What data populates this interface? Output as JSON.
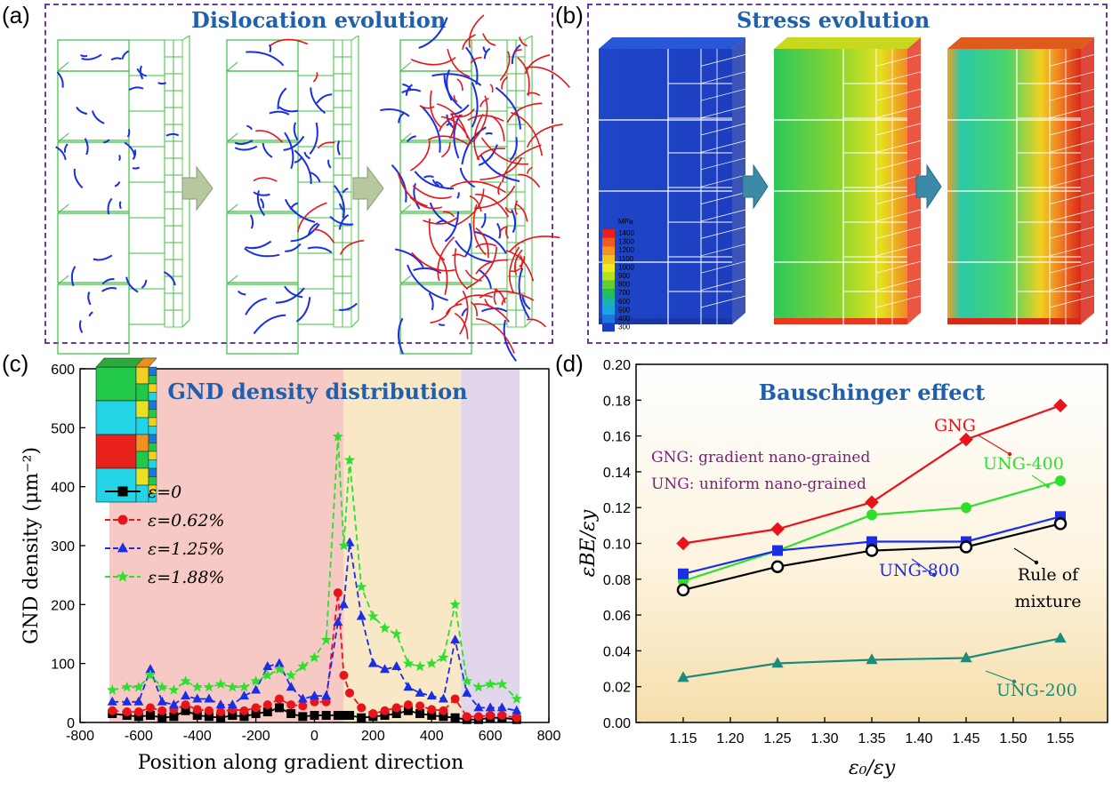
{
  "panels": {
    "a": {
      "label": "(a)",
      "title": "Dislocation evolution"
    },
    "b": {
      "label": "(b)",
      "title": "Stress evolution",
      "colorbar": {
        "unit": "MPa",
        "levels": [
          "1400",
          "1300",
          "1200",
          "1100",
          "1000",
          "900",
          "800",
          "700",
          "600",
          "500",
          "400",
          "300"
        ],
        "colors": [
          "#e4221b",
          "#f05a1e",
          "#f7931e",
          "#f6c21c",
          "#f2ea1d",
          "#b7e11d",
          "#5fd02c",
          "#22c05b",
          "#1cb3a8",
          "#1aa7e0",
          "#1a78d8",
          "#1a3bc8"
        ]
      }
    },
    "c": {
      "label": "(c)"
    },
    "d": {
      "label": "(d)"
    }
  },
  "chart_data": [
    {
      "type": "line",
      "title": "GND density distribution",
      "xlabel": "Position along gradient direction",
      "ylabel": "GND density (μm⁻²)",
      "xlim": [
        -800,
        800
      ],
      "ylim": [
        0,
        600
      ],
      "xticks": [
        "-800",
        "-600",
        "-400",
        "-200",
        "0",
        "200",
        "400",
        "600",
        "800"
      ],
      "yticks": [
        "0",
        "100",
        "200",
        "300",
        "400",
        "500",
        "600"
      ],
      "regions": [
        {
          "from": -700,
          "to": 100,
          "color": "#f7c9c4"
        },
        {
          "from": 100,
          "to": 500,
          "color": "#f9e8c6"
        },
        {
          "from": 500,
          "to": 700,
          "color": "#e2d6ea"
        }
      ],
      "x": [
        -690,
        -640,
        -600,
        -560,
        -520,
        -480,
        -440,
        -400,
        -360,
        -320,
        -280,
        -240,
        -200,
        -160,
        -120,
        -80,
        -40,
        0,
        40,
        80,
        100,
        120,
        160,
        200,
        240,
        280,
        320,
        360,
        400,
        440,
        480,
        520,
        560,
        600,
        640,
        690
      ],
      "series": [
        {
          "name": "ε=0",
          "color": "#000000",
          "marker": "square",
          "values": [
            15,
            12,
            10,
            12,
            8,
            10,
            20,
            12,
            10,
            8,
            12,
            10,
            15,
            18,
            25,
            15,
            10,
            12,
            12,
            12,
            12,
            12,
            8,
            10,
            12,
            15,
            20,
            15,
            12,
            10,
            8,
            5,
            5,
            8,
            8,
            5
          ]
        },
        {
          "name": "ε=0.62%",
          "color": "#e8141a",
          "marker": "circle",
          "values": [
            20,
            18,
            18,
            25,
            20,
            22,
            30,
            22,
            20,
            18,
            22,
            20,
            25,
            30,
            40,
            30,
            28,
            35,
            35,
            220,
            80,
            50,
            25,
            15,
            20,
            25,
            30,
            28,
            22,
            20,
            40,
            10,
            10,
            12,
            12,
            8
          ]
        },
        {
          "name": "ε=1.25%",
          "color": "#1a2ee6",
          "marker": "triangle",
          "values": [
            35,
            35,
            35,
            90,
            35,
            30,
            45,
            40,
            40,
            30,
            30,
            45,
            55,
            95,
            100,
            60,
            40,
            45,
            45,
            170,
            200,
            305,
            180,
            100,
            90,
            95,
            60,
            50,
            45,
            40,
            140,
            50,
            25,
            25,
            25,
            20
          ]
        },
        {
          "name": "ε=1.88%",
          "color": "#2ee02e",
          "marker": "star",
          "values": [
            55,
            60,
            60,
            80,
            60,
            55,
            70,
            60,
            60,
            65,
            60,
            60,
            70,
            80,
            90,
            80,
            95,
            110,
            140,
            485,
            300,
            445,
            230,
            180,
            160,
            150,
            100,
            95,
            100,
            110,
            200,
            70,
            60,
            65,
            65,
            40
          ]
        }
      ]
    },
    {
      "type": "line",
      "title": "Bauschinger effect",
      "xlabel": "ε₀/εy",
      "ylabel": "εBE/εy",
      "xlim": [
        1.1,
        1.6
      ],
      "ylim": [
        0.0,
        0.2
      ],
      "xticks": [
        "1.15",
        "1.20",
        "1.25",
        "1.30",
        "1.35",
        "1.40",
        "1.45",
        "1.50",
        "1.55"
      ],
      "yticks": [
        "0.00",
        "0.02",
        "0.04",
        "0.06",
        "0.08",
        "0.10",
        "0.12",
        "0.14",
        "0.16",
        "0.18",
        "0.20"
      ],
      "x": [
        1.15,
        1.25,
        1.35,
        1.45,
        1.55
      ],
      "series": [
        {
          "name": "GNG",
          "color": "#e8141a",
          "marker": "diamond",
          "values": [
            0.1,
            0.108,
            0.123,
            0.158,
            0.177
          ]
        },
        {
          "name": "UNG-400",
          "color": "#2ee02e",
          "marker": "circle",
          "values": [
            0.079,
            0.096,
            0.116,
            0.12,
            0.135
          ]
        },
        {
          "name": "UNG-800",
          "color": "#1a2ee6",
          "marker": "square",
          "values": [
            0.083,
            0.096,
            0.101,
            0.101,
            0.115
          ]
        },
        {
          "name": "Rule of mixture",
          "color": "#000000",
          "marker": "open-circle",
          "values": [
            0.074,
            0.087,
            0.096,
            0.098,
            0.111
          ]
        },
        {
          "name": "UNG-200",
          "color": "#1e8a7a",
          "marker": "triangle",
          "values": [
            0.025,
            0.033,
            0.035,
            0.036,
            0.047
          ]
        }
      ],
      "annotations": [
        {
          "text": "GNG: gradient nano-grained",
          "color": "#7a1f7a"
        },
        {
          "text": "UNG: uniform nano-grained",
          "color": "#7a1f7a"
        },
        {
          "text": "GNG",
          "color": "#e8141a"
        },
        {
          "text": "UNG-400",
          "color": "#2ee02e"
        },
        {
          "text": "UNG-800",
          "color": "#1a2ee6"
        },
        {
          "text": "Rule of",
          "color": "#000000"
        },
        {
          "text": "mixture",
          "color": "#000000"
        },
        {
          "text": "UNG-200",
          "color": "#1e8a7a"
        }
      ]
    }
  ]
}
